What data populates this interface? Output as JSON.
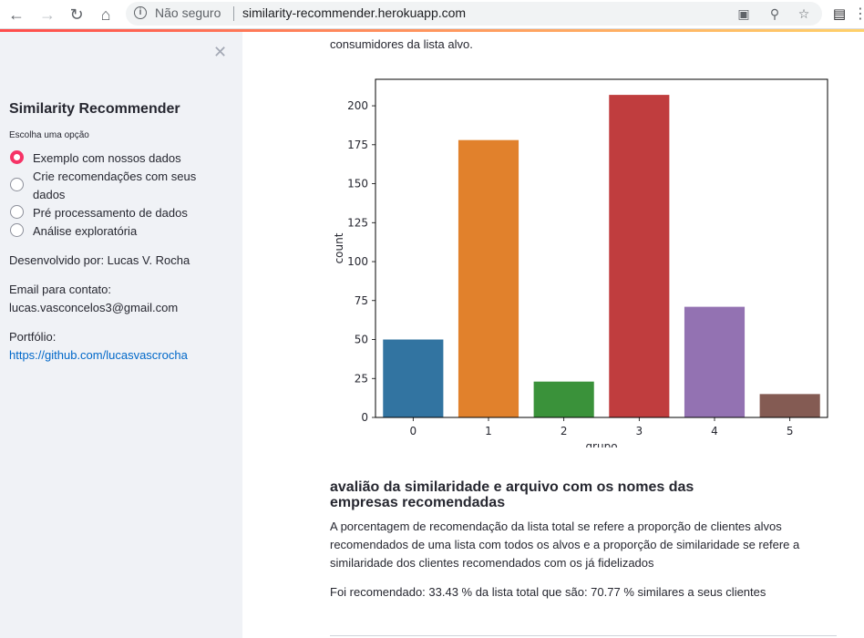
{
  "browser": {
    "security_label": "Não seguro",
    "url": "similarity-recommender.herokuapp.com"
  },
  "sidebar": {
    "title": "Similarity Recommender",
    "choose_label": "Escolha uma opção",
    "options": [
      {
        "label": "Exemplo com nossos dados",
        "selected": true
      },
      {
        "label": "Crie recomendações com seus dados",
        "selected": false
      },
      {
        "label": "Pré processamento de dados",
        "selected": false
      },
      {
        "label": "Análise exploratória",
        "selected": false
      }
    ],
    "developer": "Desenvolvido por: Lucas V. Rocha",
    "email_label": "Email para contato:",
    "email": "lucas.vasconcelos3@gmail.com",
    "portfolio_label": "Portfólio:",
    "portfolio_link": "https://github.com/lucasvascrocha"
  },
  "main": {
    "top_text": "consumidores da lista alvo.",
    "section_title": "avalião da similaridade e arquivo com os nomes das empresas recomendadas",
    "paragraph": "A porcentagem de recomendação da lista total se refere a proporção de clientes alvos recomendados de uma lista com todos os alvos e a proporção de similaridade se refere a similaridade dos clientes recomendados com os já fidelizados",
    "result": "Foi recomendado: 33.43 % da lista total que são: 70.77 % similares a seus clientes"
  },
  "chart_data": {
    "type": "bar",
    "categories": [
      "0",
      "1",
      "2",
      "3",
      "4",
      "5"
    ],
    "values": [
      50,
      178,
      23,
      207,
      71,
      15
    ],
    "colors": [
      "#3274a1",
      "#e1812c",
      "#3a923a",
      "#c03d3e",
      "#9372b2",
      "#845b53"
    ],
    "xlabel": "grupo",
    "ylabel": "count",
    "ylim": [
      0,
      217
    ],
    "yticks": [
      0,
      25,
      50,
      75,
      100,
      125,
      150,
      175,
      200
    ]
  }
}
